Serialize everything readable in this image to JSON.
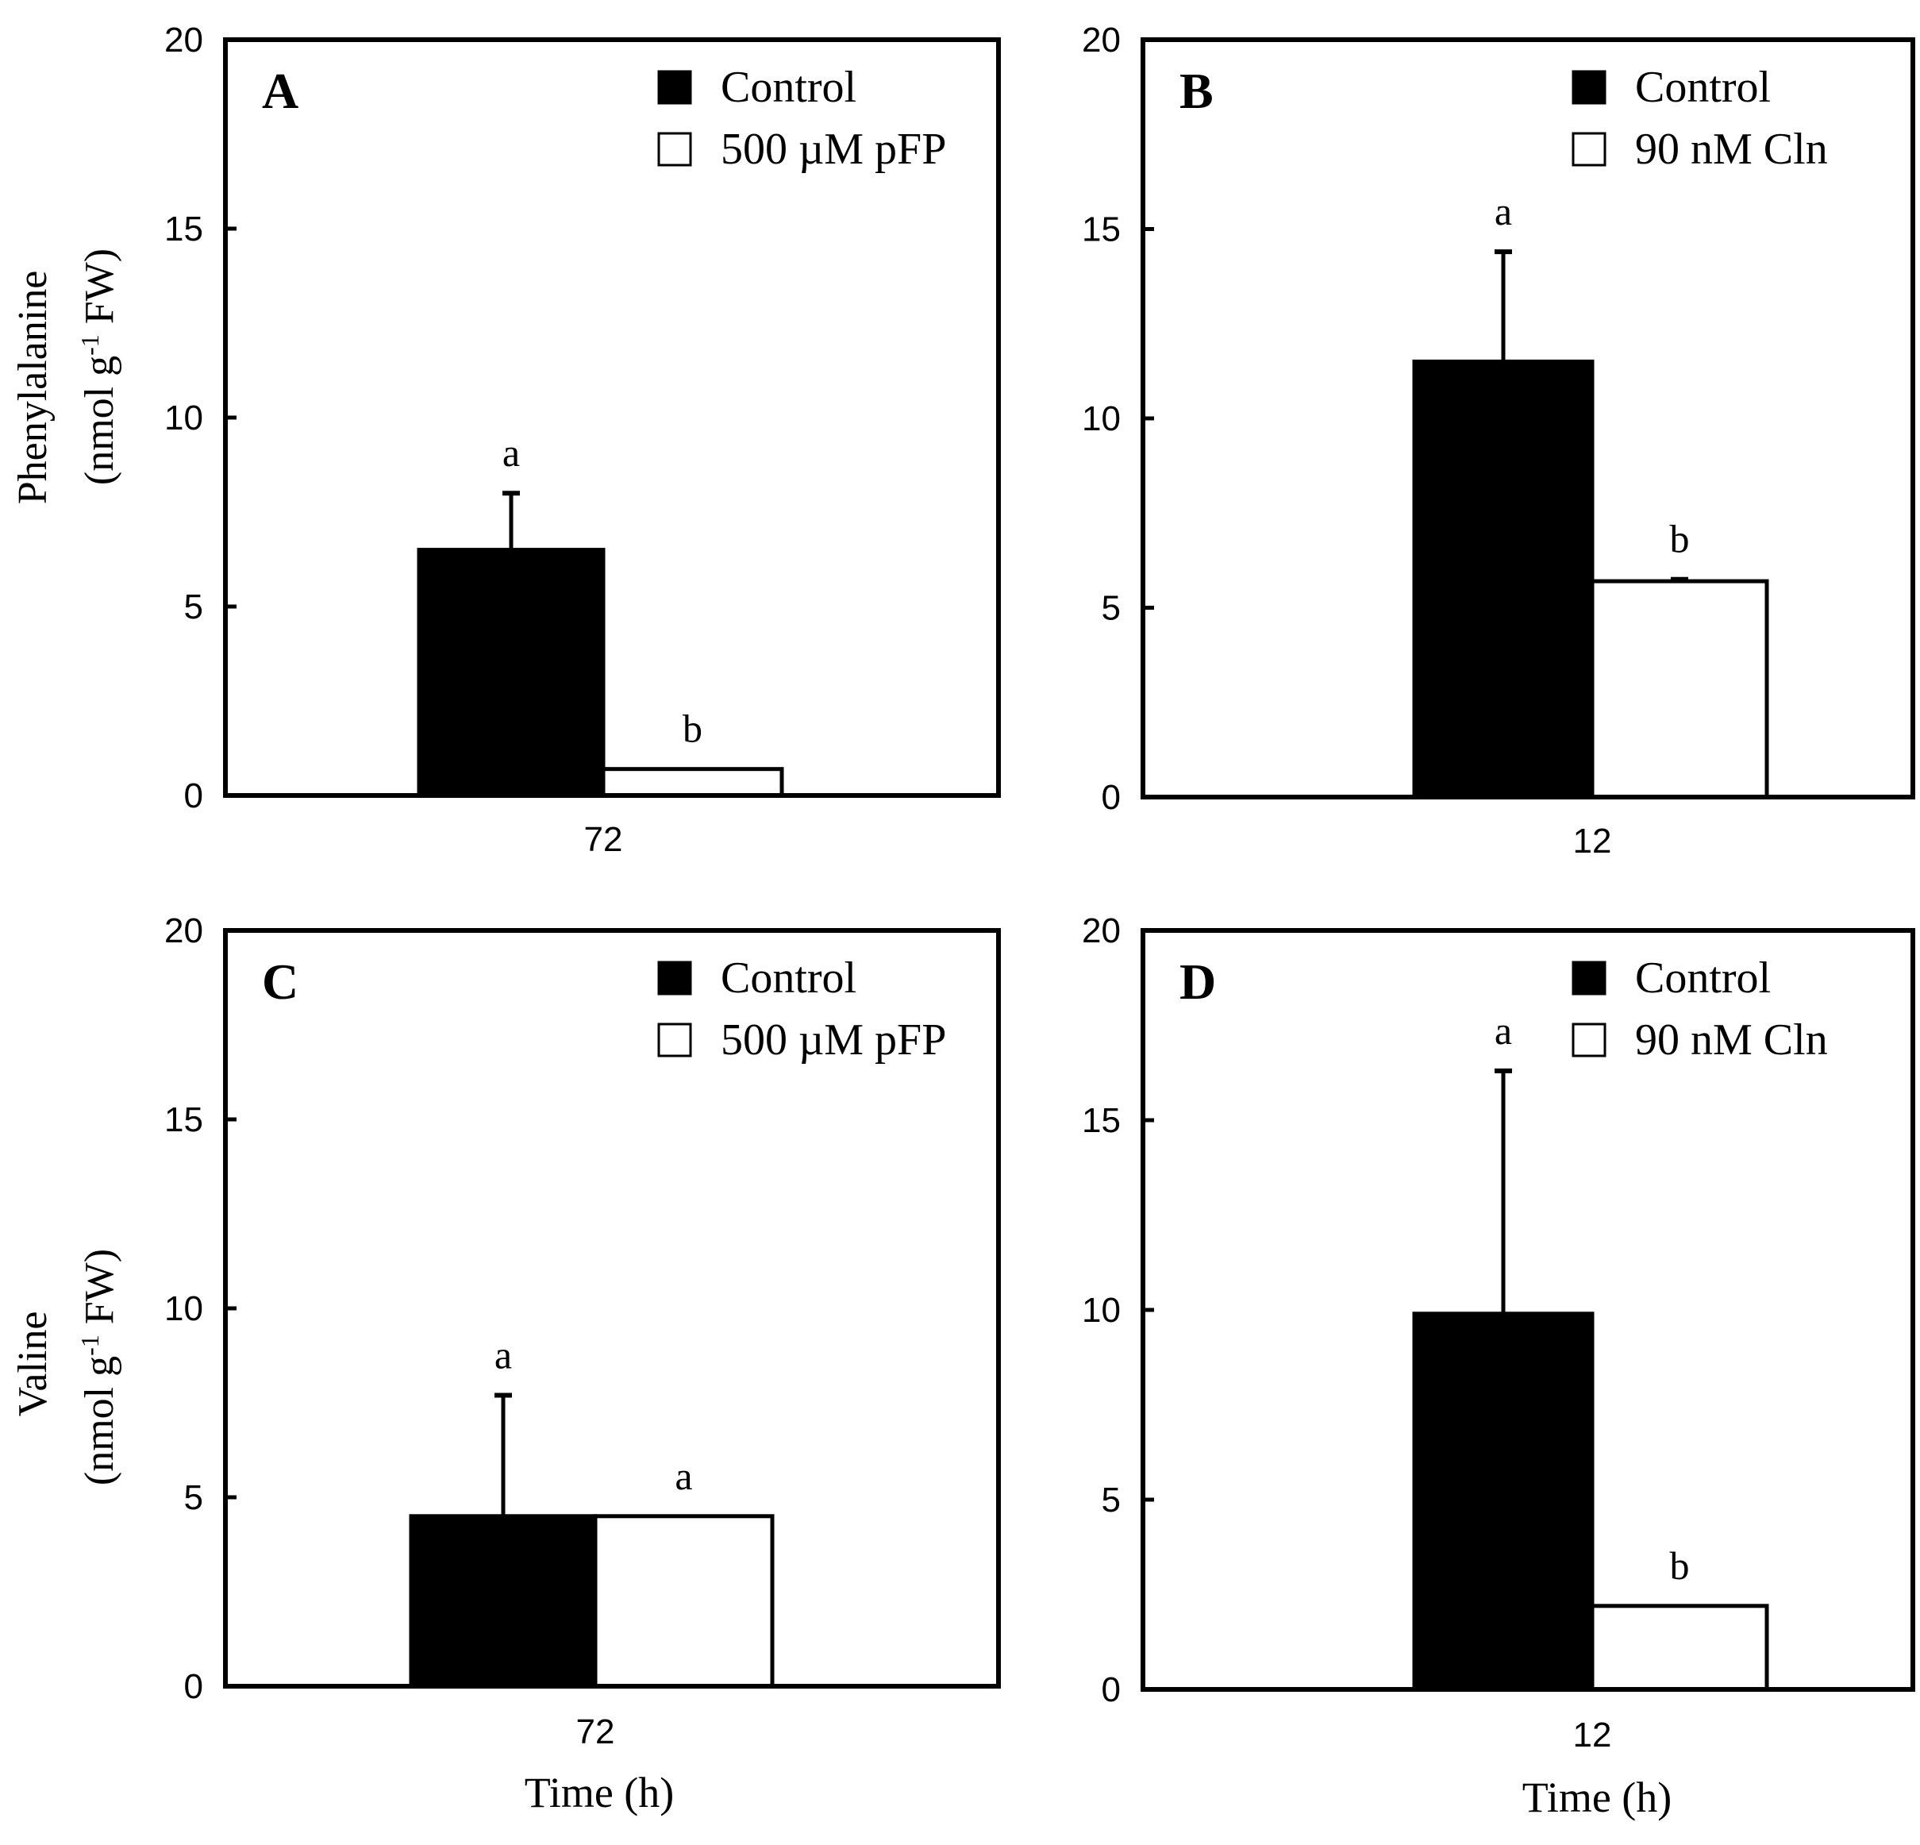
{
  "colors": {
    "control": "#000000",
    "treatment": "#ffffff",
    "stroke": "#000000"
  },
  "rows": [
    {
      "ylabel_line1": "Phenylalanine",
      "ylabel_line2_pre": "(nmol g",
      "ylabel_sup": "-1",
      "ylabel_line2_post": " FW)"
    },
    {
      "ylabel_line1": "Valine",
      "ylabel_line2_pre": "(nmol g",
      "ylabel_sup": "-1",
      "ylabel_line2_post": " FW)"
    }
  ],
  "xlabel": "Time (h)",
  "chart_data": [
    {
      "type": "bar",
      "panel": "A",
      "categories": [
        "72"
      ],
      "ylim": [
        0,
        20
      ],
      "yticks": [
        0,
        5,
        10,
        15,
        20
      ],
      "legend_position": "top-right",
      "series": [
        {
          "name": "Control",
          "color": "#000000",
          "values": [
            6.5
          ],
          "errors": [
            1.5
          ],
          "sig": [
            "a"
          ]
        },
        {
          "name": "500 µM pFP",
          "color": "#ffffff",
          "values": [
            0.7
          ],
          "errors": [
            0
          ],
          "sig": [
            "b"
          ]
        }
      ]
    },
    {
      "type": "bar",
      "panel": "B",
      "categories": [
        "12"
      ],
      "ylim": [
        0,
        20
      ],
      "yticks": [
        0,
        5,
        10,
        15,
        20
      ],
      "legend_position": "top-right",
      "series": [
        {
          "name": "Control",
          "color": "#000000",
          "values": [
            11.5
          ],
          "errors": [
            2.9
          ],
          "sig": [
            "a"
          ]
        },
        {
          "name": "90 nM Cln",
          "color": "#ffffff",
          "values": [
            5.7
          ],
          "errors": [
            0.05
          ],
          "sig": [
            "b"
          ]
        }
      ]
    },
    {
      "type": "bar",
      "panel": "C",
      "categories": [
        "72"
      ],
      "ylim": [
        0,
        20
      ],
      "yticks": [
        0,
        5,
        10,
        15,
        20
      ],
      "legend_position": "top-right",
      "series": [
        {
          "name": "Control",
          "color": "#000000",
          "values": [
            4.5
          ],
          "errors": [
            3.2
          ],
          "sig": [
            "a"
          ]
        },
        {
          "name": "500 µM pFP",
          "color": "#ffffff",
          "values": [
            4.5
          ],
          "errors": [
            0
          ],
          "sig": [
            "a"
          ]
        }
      ]
    },
    {
      "type": "bar",
      "panel": "D",
      "categories": [
        "12"
      ],
      "ylim": [
        0,
        20
      ],
      "yticks": [
        0,
        5,
        10,
        15,
        20
      ],
      "legend_position": "top-right",
      "series": [
        {
          "name": "Control",
          "color": "#000000",
          "values": [
            9.9
          ],
          "errors": [
            6.4
          ],
          "sig": [
            "a"
          ]
        },
        {
          "name": "90 nM Cln",
          "color": "#ffffff",
          "values": [
            2.2
          ],
          "errors": [
            0
          ],
          "sig": [
            "b"
          ]
        }
      ]
    }
  ]
}
